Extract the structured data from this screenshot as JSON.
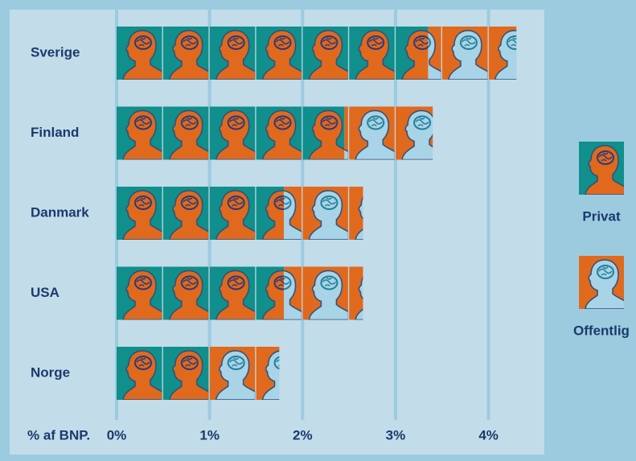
{
  "chart_data": {
    "type": "pictorial-stacked-bar",
    "categories": [
      "Sverige",
      "Finland",
      "Danmark",
      "USA",
      "Norge"
    ],
    "series": [
      {
        "name": "Privat",
        "color": "#108f8c",
        "values": [
          3.35,
          2.45,
          1.8,
          1.8,
          1.0
        ]
      },
      {
        "name": "Offentlig",
        "color": "#e0691e",
        "values": [
          0.95,
          0.95,
          0.85,
          0.85,
          0.75
        ]
      }
    ],
    "xlabel": "% af BNP.",
    "xlim": [
      0,
      4.6
    ],
    "xticks": [
      {
        "value": 0,
        "label": "0%"
      },
      {
        "value": 1,
        "label": "1%"
      },
      {
        "value": 2,
        "label": "2%"
      },
      {
        "value": 3,
        "label": "3%"
      },
      {
        "value": 4,
        "label": "4%"
      }
    ],
    "grid": true
  }
}
